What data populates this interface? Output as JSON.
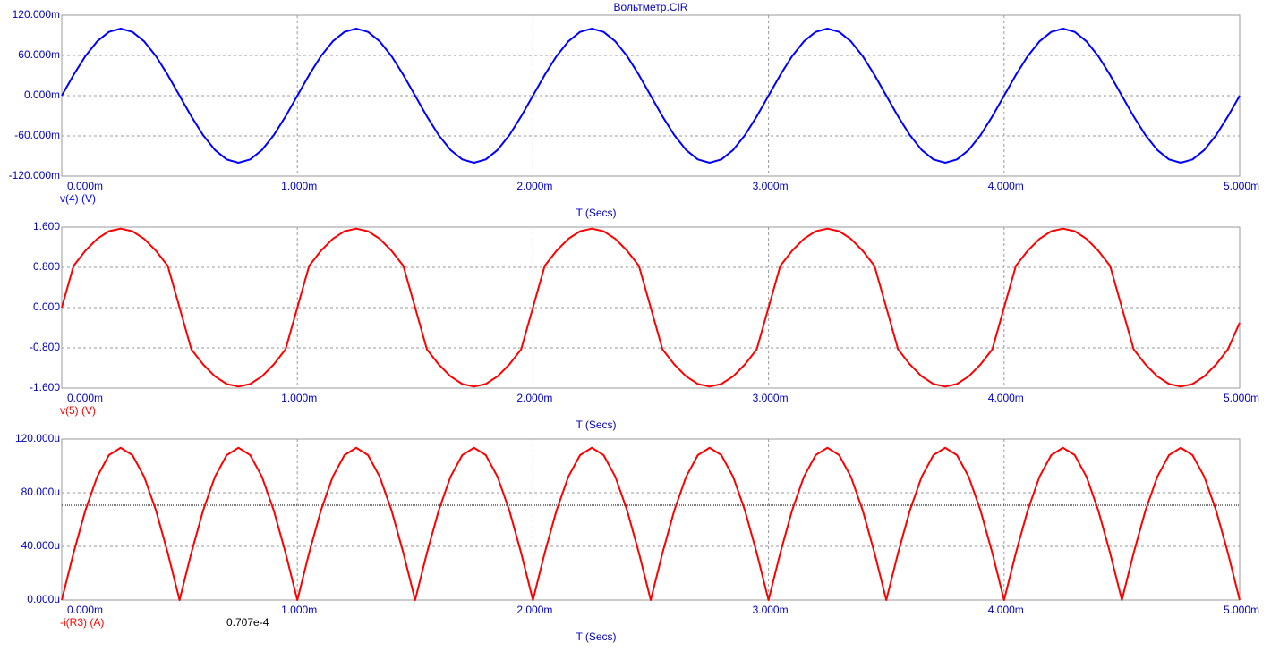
{
  "chart_data": [
    {
      "type": "line",
      "title": "Вольтметр.CIR",
      "x_label": "T (Secs)",
      "xlim": [
        0,
        0.005
      ],
      "xticks": [
        {
          "value": 0,
          "label": "0.000m"
        },
        {
          "value": 0.001,
          "label": "1.000m"
        },
        {
          "value": 0.002,
          "label": "2.000m"
        },
        {
          "value": 0.003,
          "label": "3.000m"
        },
        {
          "value": 0.004,
          "label": "4.000m"
        },
        {
          "value": 0.005,
          "label": "5.000m"
        }
      ],
      "ylim": [
        -0.12,
        0.12
      ],
      "yticks": [
        {
          "value": 0.12,
          "label": "120.000m"
        },
        {
          "value": 0.06,
          "label": "60.000m"
        },
        {
          "value": 0,
          "label": "0.000m"
        },
        {
          "value": -0.06,
          "label": "-60.000m"
        },
        {
          "value": -0.12,
          "label": "-120.000m"
        }
      ],
      "grid": true,
      "x": [
        0,
        5e-05,
        0.0001,
        0.00015,
        0.0002,
        0.00025,
        0.0003,
        0.00035,
        0.0004,
        0.00045,
        0.0005,
        0.00055,
        0.0006,
        0.00065,
        0.0007,
        0.00075,
        0.0008,
        0.00085,
        0.0009,
        0.00095,
        0.001,
        0.00105,
        0.0011,
        0.00115,
        0.0012,
        0.00125,
        0.0013,
        0.00135,
        0.0014,
        0.00145,
        0.0015,
        0.00155,
        0.0016,
        0.00165,
        0.0017,
        0.00175,
        0.0018,
        0.00185,
        0.0019,
        0.00195,
        0.002,
        0.00205,
        0.0021,
        0.00215,
        0.0022,
        0.00225,
        0.0023,
        0.00235,
        0.0024,
        0.00245,
        0.0025,
        0.00255,
        0.0026,
        0.00265,
        0.0027,
        0.00275,
        0.0028,
        0.00285,
        0.0029,
        0.00295,
        0.003,
        0.00305,
        0.0031,
        0.00315,
        0.0032,
        0.00325,
        0.0033,
        0.00335,
        0.0034,
        0.00345,
        0.0035,
        0.00355,
        0.0036,
        0.00365,
        0.0037,
        0.00375,
        0.0038,
        0.00385,
        0.0039,
        0.00395,
        0.004,
        0.00405,
        0.0041,
        0.00415,
        0.0042,
        0.00425,
        0.0043,
        0.00435,
        0.0044,
        0.00445,
        0.0045,
        0.00455,
        0.0046,
        0.00465,
        0.0047,
        0.00475,
        0.0048,
        0.00485,
        0.0049,
        0.00495,
        0.005
      ],
      "series": [
        {
          "name": "v(4) (V)",
          "color": "#0000ff",
          "values": [
            0,
            0.0309,
            0.0588,
            0.0809,
            0.0951,
            0.1,
            0.0951,
            0.0809,
            0.0588,
            0.0309,
            0,
            -0.0309,
            -0.0588,
            -0.0809,
            -0.0951,
            -0.1,
            -0.0951,
            -0.0809,
            -0.0588,
            -0.0309,
            0,
            0.0309,
            0.0588,
            0.0809,
            0.0951,
            0.1,
            0.0951,
            0.0809,
            0.0588,
            0.0309,
            0,
            -0.0309,
            -0.0588,
            -0.0809,
            -0.0951,
            -0.1,
            -0.0951,
            -0.0809,
            -0.0588,
            -0.0309,
            0,
            0.0309,
            0.0588,
            0.0809,
            0.0951,
            0.1,
            0.0951,
            0.0809,
            0.0588,
            0.0309,
            0,
            -0.0309,
            -0.0588,
            -0.0809,
            -0.0951,
            -0.1,
            -0.0951,
            -0.0809,
            -0.0588,
            -0.0309,
            0,
            0.0309,
            0.0588,
            0.0809,
            0.0951,
            0.1,
            0.0951,
            0.0809,
            0.0588,
            0.0309,
            0,
            -0.0309,
            -0.0588,
            -0.0809,
            -0.0951,
            -0.1,
            -0.0951,
            -0.0809,
            -0.0588,
            -0.0309,
            0,
            0.0309,
            0.0588,
            0.0809,
            0.0951,
            0.1,
            0.0951,
            0.0809,
            0.0588,
            0.0309,
            0,
            -0.0309,
            -0.0588,
            -0.0809,
            -0.0951,
            -0.1,
            -0.0951,
            -0.0809,
            -0.0588,
            -0.0309,
            0
          ]
        }
      ]
    },
    {
      "type": "line",
      "x_label": "T (Secs)",
      "xlim": [
        0,
        0.005
      ],
      "xticks": [
        {
          "value": 0,
          "label": "0.000m"
        },
        {
          "value": 0.001,
          "label": "1.000m"
        },
        {
          "value": 0.002,
          "label": "2.000m"
        },
        {
          "value": 0.003,
          "label": "3.000m"
        },
        {
          "value": 0.004,
          "label": "4.000m"
        },
        {
          "value": 0.005,
          "label": "5.000m"
        }
      ],
      "ylim": [
        -1.6,
        1.6
      ],
      "yticks": [
        {
          "value": 1.6,
          "label": "1.600"
        },
        {
          "value": 0.8,
          "label": "0.800"
        },
        {
          "value": 0,
          "label": "0.000"
        },
        {
          "value": -0.8,
          "label": "-0.800"
        },
        {
          "value": -1.6,
          "label": "-1.600"
        }
      ],
      "grid": true,
      "x": [
        0,
        5e-05,
        0.0001,
        0.00015,
        0.0002,
        0.00025,
        0.0003,
        0.00035,
        0.0004,
        0.00045,
        0.0005,
        0.00055,
        0.0006,
        0.00065,
        0.0007,
        0.00075,
        0.0008,
        0.00085,
        0.0009,
        0.00095,
        0.001,
        0.00105,
        0.0011,
        0.00115,
        0.0012,
        0.00125,
        0.0013,
        0.00135,
        0.0014,
        0.00145,
        0.0015,
        0.00155,
        0.0016,
        0.00165,
        0.0017,
        0.00175,
        0.0018,
        0.00185,
        0.0019,
        0.00195,
        0.002,
        0.00205,
        0.0021,
        0.00215,
        0.0022,
        0.00225,
        0.0023,
        0.00235,
        0.0024,
        0.00245,
        0.0025,
        0.00255,
        0.0026,
        0.00265,
        0.0027,
        0.00275,
        0.0028,
        0.00285,
        0.0029,
        0.00295,
        0.003,
        0.00305,
        0.0031,
        0.00315,
        0.0032,
        0.00325,
        0.0033,
        0.00335,
        0.0034,
        0.00345,
        0.0035,
        0.00355,
        0.0036,
        0.00365,
        0.0037,
        0.00375,
        0.0038,
        0.00385,
        0.0039,
        0.00395,
        0.004,
        0.00405,
        0.0041,
        0.00415,
        0.0042,
        0.00425,
        0.0043,
        0.00435,
        0.0044,
        0.00445,
        0.0045,
        0.00455,
        0.0046,
        0.00465,
        0.0047,
        0.00475,
        0.0048,
        0.00485,
        0.0049,
        0.00495,
        0.005
      ],
      "series": [
        {
          "name": "v(5) (V)",
          "color": "#ff0000",
          "values": [
            0,
            0.829,
            1.129,
            1.366,
            1.518,
            1.57,
            1.518,
            1.366,
            1.129,
            0.829,
            0,
            -0.829,
            -1.129,
            -1.366,
            -1.518,
            -1.57,
            -1.518,
            -1.366,
            -1.129,
            -0.829,
            0,
            0.829,
            1.129,
            1.366,
            1.518,
            1.57,
            1.518,
            1.366,
            1.129,
            0.829,
            0,
            -0.829,
            -1.129,
            -1.366,
            -1.518,
            -1.57,
            -1.518,
            -1.366,
            -1.129,
            -0.829,
            0,
            0.829,
            1.129,
            1.366,
            1.518,
            1.57,
            1.518,
            1.366,
            1.129,
            0.829,
            0,
            -0.829,
            -1.129,
            -1.366,
            -1.518,
            -1.57,
            -1.518,
            -1.366,
            -1.129,
            -0.829,
            0,
            0.829,
            1.129,
            1.366,
            1.518,
            1.57,
            1.518,
            1.366,
            1.129,
            0.829,
            0,
            -0.829,
            -1.129,
            -1.366,
            -1.518,
            -1.57,
            -1.518,
            -1.366,
            -1.129,
            -0.829,
            0,
            0.829,
            1.129,
            1.366,
            1.518,
            1.57,
            1.518,
            1.366,
            1.129,
            0.829,
            0,
            -0.829,
            -1.129,
            -1.366,
            -1.518,
            -1.57,
            -1.518,
            -1.366,
            -1.129,
            -0.829,
            -0.3
          ]
        }
      ]
    },
    {
      "type": "line",
      "x_label": "T (Secs)",
      "xlim": [
        0,
        0.005
      ],
      "xticks": [
        {
          "value": 0,
          "label": "0.000m"
        },
        {
          "value": 0.001,
          "label": "1.000m"
        },
        {
          "value": 0.002,
          "label": "2.000m"
        },
        {
          "value": 0.003,
          "label": "3.000m"
        },
        {
          "value": 0.004,
          "label": "4.000m"
        },
        {
          "value": 0.005,
          "label": "5.000m"
        }
      ],
      "ylim": [
        0,
        0.00012
      ],
      "yticks": [
        {
          "value": 0.00012,
          "label": "120.000u"
        },
        {
          "value": 8e-05,
          "label": "80.000u"
        },
        {
          "value": 4e-05,
          "label": "40.000u"
        },
        {
          "value": 0,
          "label": "0.000u"
        }
      ],
      "grid": true,
      "reference_line": {
        "value": 7.07e-05,
        "label": "0.707e-4"
      },
      "x": [
        0,
        5e-05,
        0.0001,
        0.00015,
        0.0002,
        0.00025,
        0.0003,
        0.00035,
        0.0004,
        0.00045,
        0.0005,
        0.00055,
        0.0006,
        0.00065,
        0.0007,
        0.00075,
        0.0008,
        0.00085,
        0.0009,
        0.00095,
        0.001,
        0.00105,
        0.0011,
        0.00115,
        0.0012,
        0.00125,
        0.0013,
        0.00135,
        0.0014,
        0.00145,
        0.0015,
        0.00155,
        0.0016,
        0.00165,
        0.0017,
        0.00175,
        0.0018,
        0.00185,
        0.0019,
        0.00195,
        0.002,
        0.00205,
        0.0021,
        0.00215,
        0.0022,
        0.00225,
        0.0023,
        0.00235,
        0.0024,
        0.00245,
        0.0025,
        0.00255,
        0.0026,
        0.00265,
        0.0027,
        0.00275,
        0.0028,
        0.00285,
        0.0029,
        0.00295,
        0.003,
        0.00305,
        0.0031,
        0.00315,
        0.0032,
        0.00325,
        0.0033,
        0.00335,
        0.0034,
        0.00345,
        0.0035,
        0.00355,
        0.0036,
        0.00365,
        0.0037,
        0.00375,
        0.0038,
        0.00385,
        0.0039,
        0.00395,
        0.004,
        0.00405,
        0.0041,
        0.00415,
        0.0042,
        0.00425,
        0.0043,
        0.00435,
        0.0044,
        0.00445,
        0.0045,
        0.00455,
        0.0046,
        0.00465,
        0.0047,
        0.00475,
        0.0048,
        0.00485,
        0.0049,
        0.00495,
        0.005
      ],
      "series": [
        {
          "name": "-i(R3) (A)",
          "color": "#ff0000",
          "values": [
            0,
            3.51e-05,
            6.67e-05,
            9.18e-05,
            0.000108,
            0.0001135,
            0.000108,
            9.18e-05,
            6.67e-05,
            3.51e-05,
            0,
            3.51e-05,
            6.67e-05,
            9.18e-05,
            0.000108,
            0.0001135,
            0.000108,
            9.18e-05,
            6.67e-05,
            3.51e-05,
            0,
            3.51e-05,
            6.67e-05,
            9.18e-05,
            0.000108,
            0.0001135,
            0.000108,
            9.18e-05,
            6.67e-05,
            3.51e-05,
            0,
            3.51e-05,
            6.67e-05,
            9.18e-05,
            0.000108,
            0.0001135,
            0.000108,
            9.18e-05,
            6.67e-05,
            3.51e-05,
            0,
            3.51e-05,
            6.67e-05,
            9.18e-05,
            0.000108,
            0.0001135,
            0.000108,
            9.18e-05,
            6.67e-05,
            3.51e-05,
            0,
            3.51e-05,
            6.67e-05,
            9.18e-05,
            0.000108,
            0.0001135,
            0.000108,
            9.18e-05,
            6.67e-05,
            3.51e-05,
            0,
            3.51e-05,
            6.67e-05,
            9.18e-05,
            0.000108,
            0.0001135,
            0.000108,
            9.18e-05,
            6.67e-05,
            3.51e-05,
            0,
            3.51e-05,
            6.67e-05,
            9.18e-05,
            0.000108,
            0.0001135,
            0.000108,
            9.18e-05,
            6.67e-05,
            3.51e-05,
            0,
            3.51e-05,
            6.67e-05,
            9.18e-05,
            0.000108,
            0.0001135,
            0.000108,
            9.18e-05,
            6.67e-05,
            3.51e-05,
            0,
            3.51e-05,
            6.67e-05,
            9.18e-05,
            0.000108,
            0.0001135,
            0.000108,
            9.18e-05,
            6.67e-05,
            3.51e-05,
            0
          ]
        }
      ]
    }
  ]
}
